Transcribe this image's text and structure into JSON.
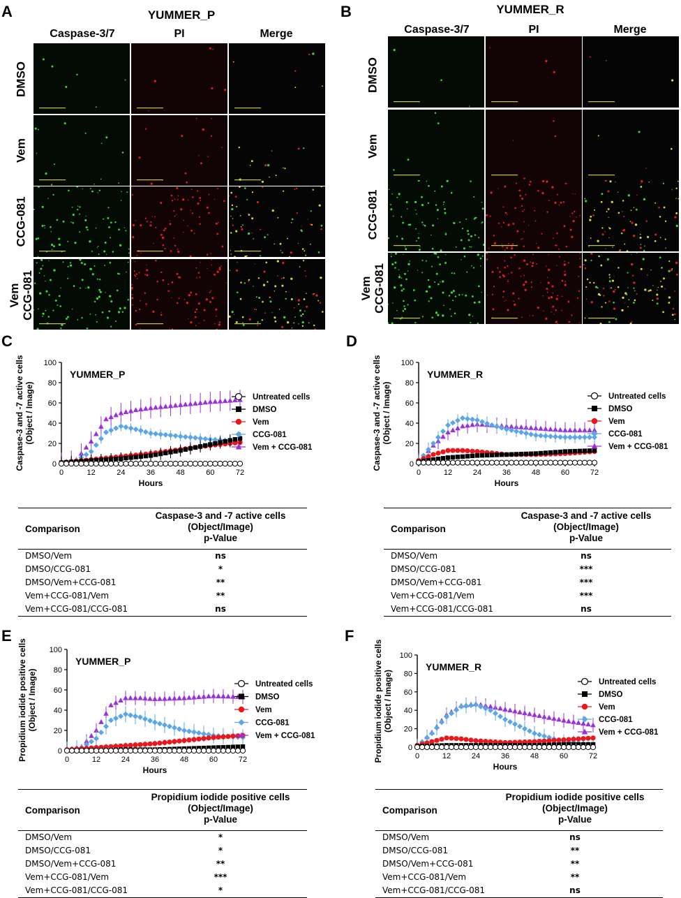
{
  "panels": {
    "A": {
      "letter": "A",
      "title": "YUMMER_P",
      "columns": [
        "Caspase-3/7",
        "PI",
        "Merge"
      ],
      "rows": [
        "DMSO",
        "Vem",
        "CCG-081",
        "Vem\nCCG-081"
      ]
    },
    "B": {
      "letter": "B",
      "title": "YUMMER_R",
      "columns": [
        "Caspase-3/7",
        "PI",
        "Merge"
      ],
      "rows": [
        "DMSO",
        "Vem",
        "CCG-081",
        "Vem\nCCG-081"
      ]
    },
    "C": {
      "letter": "C"
    },
    "D": {
      "letter": "D"
    },
    "E": {
      "letter": "E"
    },
    "F": {
      "letter": "F"
    }
  },
  "row_labels": {
    "r1": "DMSO",
    "r2": "Vem",
    "r3": "CCG-081",
    "r4a": "Vem",
    "r4b": "CCG-081"
  },
  "colors": {
    "untreated": "#ffffff",
    "dmso": "#000000",
    "vem": "#e8191e",
    "ccg": "#5aa6e8",
    "combo": "#9b30d9"
  },
  "chart_data": [
    {
      "id": "C",
      "type": "line",
      "title": "YUMMER_P",
      "ylabel": "Caspase-3 and -7 active cells\n(Object / Image)",
      "xlabel": "Hours",
      "xlim": [
        0,
        72
      ],
      "ylim": [
        0,
        100
      ],
      "xticks": [
        0,
        12,
        24,
        36,
        48,
        60,
        72
      ],
      "yticks": [
        0,
        20,
        40,
        60,
        80,
        100
      ],
      "legend": [
        "Untreated cells",
        "DMSO",
        "Vem",
        "CCG-081",
        "Vem + CCG-081"
      ],
      "series": [
        {
          "name": "Untreated cells",
          "x": [
            0,
            12,
            24,
            36,
            48,
            60,
            72
          ],
          "y": [
            0,
            0,
            0,
            0,
            0,
            0,
            0
          ],
          "err": 0
        },
        {
          "name": "DMSO",
          "x": [
            0,
            12,
            24,
            36,
            48,
            60,
            72
          ],
          "y": [
            1,
            3,
            5,
            8,
            13,
            19,
            25
          ],
          "err": 6
        },
        {
          "name": "Vem",
          "x": [
            0,
            12,
            24,
            36,
            48,
            60,
            72
          ],
          "y": [
            1,
            4,
            7,
            10,
            14,
            18,
            21
          ],
          "err": 4
        },
        {
          "name": "CCG-081",
          "x": [
            0,
            6,
            12,
            18,
            24,
            30,
            36,
            48,
            60,
            72
          ],
          "y": [
            1,
            3,
            12,
            31,
            37,
            34,
            30,
            27,
            24,
            22
          ],
          "err": 5
        },
        {
          "name": "Vem + CCG-081",
          "x": [
            0,
            6,
            12,
            18,
            24,
            30,
            36,
            48,
            60,
            72
          ],
          "y": [
            1,
            4,
            22,
            44,
            50,
            53,
            55,
            58,
            61,
            63
          ],
          "err": 10
        }
      ]
    },
    {
      "id": "D",
      "type": "line",
      "title": "YUMMER_R",
      "ylabel": "Caspase-3 and -7 active cells\n(Object / Image)",
      "xlabel": "Hours",
      "xlim": [
        0,
        72
      ],
      "ylim": [
        0,
        100
      ],
      "xticks": [
        0,
        12,
        24,
        36,
        48,
        60,
        72
      ],
      "yticks": [
        0,
        20,
        40,
        60,
        80,
        100
      ],
      "legend": [
        "Untreated cells",
        "DMSO",
        "Vem",
        "CCG-081",
        "Vem + CCG-081"
      ],
      "series": [
        {
          "name": "Untreated cells",
          "x": [
            0,
            12,
            24,
            36,
            48,
            60,
            72
          ],
          "y": [
            1,
            1,
            1,
            1,
            1,
            1,
            1
          ],
          "err": 0
        },
        {
          "name": "DMSO",
          "x": [
            0,
            12,
            24,
            36,
            48,
            60,
            72
          ],
          "y": [
            2,
            6,
            8,
            9,
            10,
            12,
            13
          ],
          "err": 2
        },
        {
          "name": "Vem",
          "x": [
            0,
            6,
            12,
            18,
            24,
            36,
            48,
            60,
            72
          ],
          "y": [
            3,
            9,
            13,
            13,
            12,
            9,
            9,
            10,
            12
          ],
          "err": 2
        },
        {
          "name": "CCG-081",
          "x": [
            0,
            6,
            12,
            18,
            24,
            30,
            36,
            48,
            60,
            72
          ],
          "y": [
            2,
            20,
            38,
            45,
            43,
            38,
            34,
            28,
            26,
            26
          ],
          "err": 6
        },
        {
          "name": "Vem + CCG-081",
          "x": [
            0,
            6,
            12,
            18,
            24,
            30,
            36,
            48,
            60,
            72
          ],
          "y": [
            2,
            18,
            31,
            37,
            39,
            38,
            37,
            35,
            33,
            33
          ],
          "err": 8
        }
      ]
    },
    {
      "id": "E",
      "type": "line",
      "title": "YUMMER_P",
      "ylabel": "Propidium iodide positive cells\n(Object / Image)",
      "xlabel": "Hours",
      "xlim": [
        0,
        72
      ],
      "ylim": [
        0,
        100
      ],
      "xticks": [
        0,
        12,
        24,
        36,
        48,
        60,
        72
      ],
      "yticks": [
        0,
        20,
        40,
        60,
        80,
        100
      ],
      "legend": [
        "Untreated cells",
        "DMSO",
        "Vem",
        "CCG-081",
        "Vem + CCG-081"
      ],
      "series": [
        {
          "name": "Untreated cells",
          "x": [
            0,
            12,
            24,
            36,
            48,
            60,
            72
          ],
          "y": [
            0,
            0,
            0,
            0,
            0,
            0,
            0
          ],
          "err": 0
        },
        {
          "name": "DMSO",
          "x": [
            0,
            12,
            24,
            36,
            48,
            60,
            72
          ],
          "y": [
            0,
            0,
            1,
            1,
            2,
            3,
            4
          ],
          "err": 1
        },
        {
          "name": "Vem",
          "x": [
            0,
            12,
            24,
            36,
            48,
            60,
            72
          ],
          "y": [
            1,
            3,
            5,
            7,
            10,
            13,
            15
          ],
          "err": 3
        },
        {
          "name": "CCG-081",
          "x": [
            0,
            6,
            12,
            18,
            24,
            30,
            36,
            48,
            60,
            72
          ],
          "y": [
            1,
            3,
            12,
            30,
            36,
            33,
            28,
            20,
            15,
            13
          ],
          "err": 8
        },
        {
          "name": "Vem + CCG-081",
          "x": [
            0,
            6,
            12,
            18,
            24,
            30,
            36,
            48,
            60,
            72
          ],
          "y": [
            1,
            4,
            20,
            45,
            52,
            52,
            51,
            52,
            54,
            53
          ],
          "err": 7
        }
      ]
    },
    {
      "id": "F",
      "type": "line",
      "title": "YUMMER_R",
      "ylabel": "Propidium iodide positive cells\n(Object / Image)",
      "xlabel": "Hours",
      "xlim": [
        0,
        72
      ],
      "ylim": [
        0,
        100
      ],
      "xticks": [
        0,
        12,
        24,
        36,
        48,
        60,
        72
      ],
      "yticks": [
        0,
        20,
        40,
        60,
        80,
        100
      ],
      "legend": [
        "Untreated cells",
        "DMSO",
        "Vem",
        "CCG-081",
        "Vem + CCG-081"
      ],
      "series": [
        {
          "name": "Untreated cells",
          "x": [
            0,
            12,
            24,
            36,
            48,
            60,
            72
          ],
          "y": [
            0,
            0,
            0,
            0,
            0,
            0,
            0
          ],
          "err": 0
        },
        {
          "name": "DMSO",
          "x": [
            0,
            12,
            24,
            36,
            48,
            60,
            72
          ],
          "y": [
            1,
            2,
            2,
            2,
            2,
            3,
            3
          ],
          "err": 1
        },
        {
          "name": "Vem",
          "x": [
            0,
            6,
            12,
            18,
            24,
            36,
            48,
            60,
            72
          ],
          "y": [
            2,
            6,
            10,
            9,
            7,
            5,
            6,
            8,
            10
          ],
          "err": 2
        },
        {
          "name": "CCG-081",
          "x": [
            0,
            6,
            12,
            18,
            24,
            30,
            36,
            48,
            60,
            72
          ],
          "y": [
            1,
            15,
            33,
            44,
            46,
            40,
            30,
            15,
            6,
            3
          ],
          "err": 8
        },
        {
          "name": "Vem + CCG-081",
          "x": [
            0,
            6,
            12,
            18,
            24,
            30,
            36,
            48,
            60,
            72
          ],
          "y": [
            1,
            16,
            35,
            45,
            47,
            44,
            41,
            35,
            29,
            24
          ],
          "err": 8
        }
      ]
    }
  ],
  "tables": {
    "C": {
      "col1": "Comparison",
      "col2": [
        "Caspase-3 and -7 active cells",
        "(Object/Image)",
        "p-Value"
      ],
      "rows": [
        [
          "DMSO/Vem",
          "ns"
        ],
        [
          "DMSO/CCG-081",
          "*"
        ],
        [
          "DMSO/Vem+CCG-081",
          "**"
        ],
        [
          "Vem+CCG-081/Vem",
          "**"
        ],
        [
          "Vem+CCG-081/CCG-081",
          "ns"
        ]
      ]
    },
    "D": {
      "col1": "Comparison",
      "col2": [
        "Caspase-3 and -7 active cells",
        "(Object/Image)",
        "p-Value"
      ],
      "rows": [
        [
          "DMSO/Vem",
          "ns"
        ],
        [
          "DMSO/CCG-081",
          "***"
        ],
        [
          "DMSO/Vem+CCG-081",
          "***"
        ],
        [
          "Vem+CCG-081/Vem",
          "***"
        ],
        [
          "Vem+CCG-081/CCG-081",
          "ns"
        ]
      ]
    },
    "E": {
      "col1": "Comparison",
      "col2": [
        "Propidium iodide positive cells",
        "(Object/Image)",
        "p-Value"
      ],
      "rows": [
        [
          "DMSO/Vem",
          "*"
        ],
        [
          "DMSO/CCG-081",
          "*"
        ],
        [
          "DMSO/Vem+CCG-081",
          "**"
        ],
        [
          "Vem+CCG-081/Vem",
          "***"
        ],
        [
          "Vem+CCG-081/CCG-081",
          "*"
        ]
      ]
    },
    "F": {
      "col1": "Comparison",
      "col2": [
        "Propidium iodide positive cells",
        "(Object/Image)",
        "p-Value"
      ],
      "rows": [
        [
          "DMSO/Vem",
          "ns"
        ],
        [
          "DMSO/CCG-081",
          "**"
        ],
        [
          "DMSO/Vem+CCG-081",
          "**"
        ],
        [
          "Vem+CCG-081/Vem",
          "**"
        ],
        [
          "Vem+CCG-081/CCG-081",
          "ns"
        ]
      ]
    }
  }
}
